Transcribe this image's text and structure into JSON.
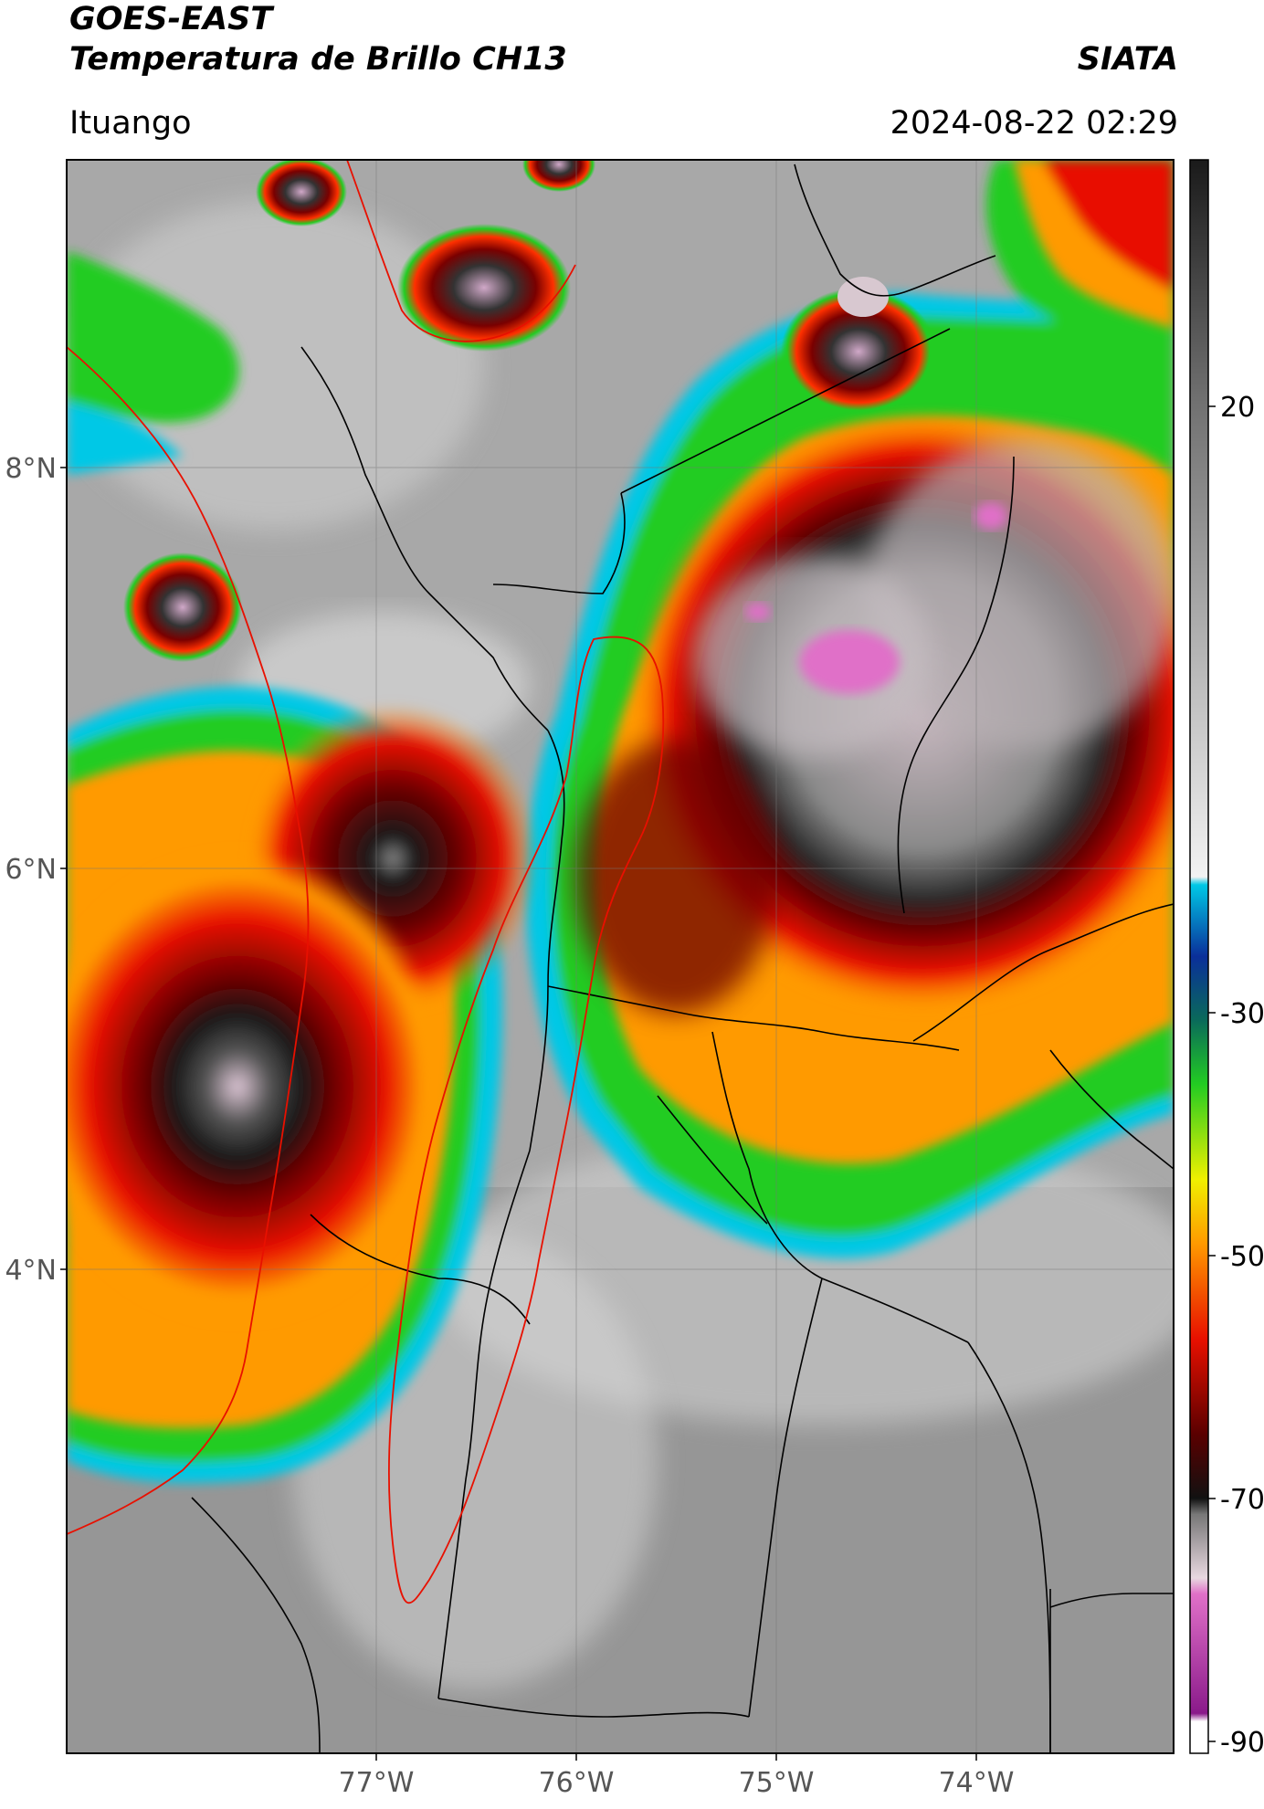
{
  "header": {
    "satellite": "GOES-EAST",
    "product": "Temperatura de Brillo CH13",
    "organization": "SIATA",
    "region": "Ituango",
    "datetime": "2024-08-22 02:29"
  },
  "map": {
    "lat_labels": [
      "8°N",
      "6°N",
      "4°N"
    ],
    "lon_labels": [
      "77°W",
      "76°W",
      "75°W",
      "74°W"
    ]
  },
  "colorbar": {
    "tick_labels": [
      "20",
      "-30",
      "-50",
      "-70",
      "-90"
    ],
    "colors": {
      "warm_top": "#1a1a1a",
      "gray_mid": "#9a9a9a",
      "white": "#f2f2f2",
      "cyan": "#00c8e6",
      "blue": "#0a2f9a",
      "teal": "#0a6a5a",
      "green": "#22cc22",
      "yellow": "#f0f000",
      "orange": "#ff9a00",
      "red": "#e81000",
      "dark_red": "#5a0000",
      "black": "#000000",
      "pink": "#e070c8",
      "purple": "#8a1a8a"
    }
  }
}
